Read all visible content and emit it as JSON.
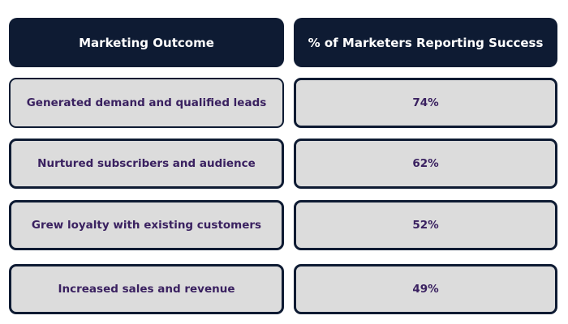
{
  "chart_data": {
    "type": "table",
    "columns": [
      "Marketing Outcome",
      "% of Marketers Reporting Success"
    ],
    "rows": [
      {
        "outcome": "Generated demand and qualified leads",
        "value": "74%"
      },
      {
        "outcome": "Nurtured subscribers and audience",
        "value": "62%"
      },
      {
        "outcome": "Grew loyalty with existing customers",
        "value": "52%"
      },
      {
        "outcome": "Increased sales and revenue",
        "value": "49%"
      }
    ]
  },
  "colors": {
    "header_bg": "#0e1b33",
    "header_text": "#ffffff",
    "cell_bg": "#dcdcdc",
    "cell_border": "#0e1b33",
    "cell_text": "#3a2160"
  }
}
